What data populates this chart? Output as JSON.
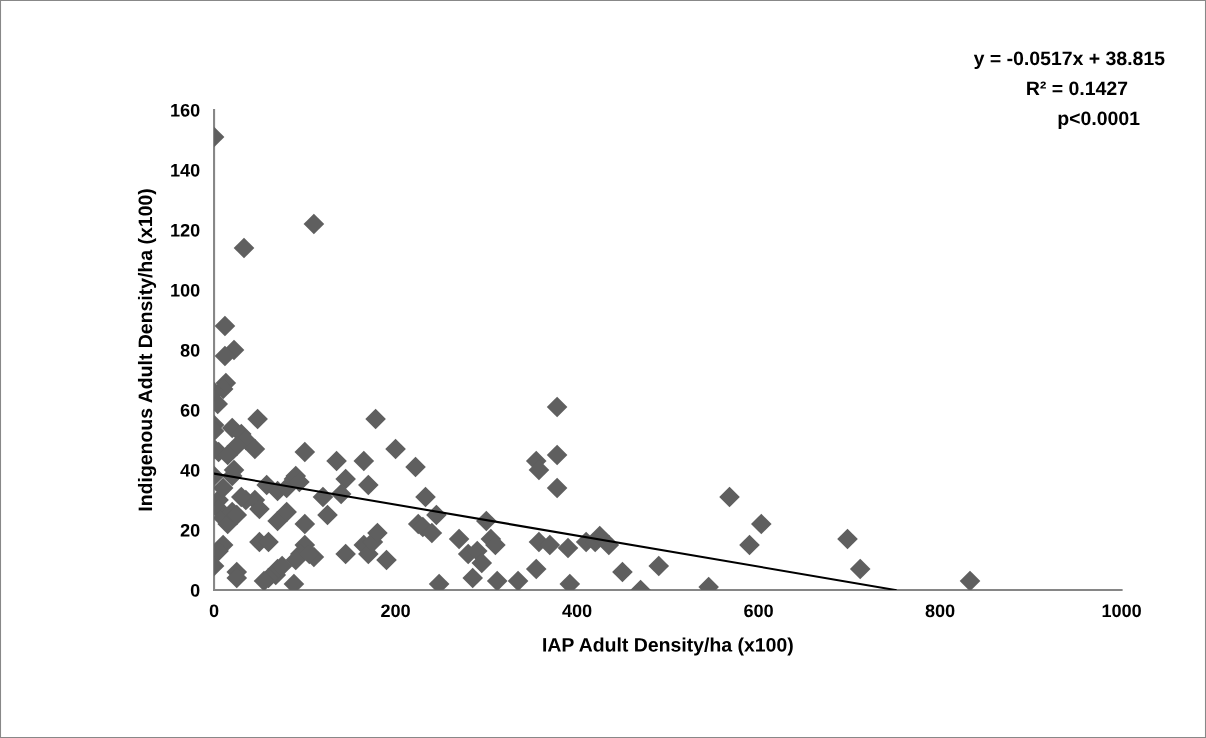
{
  "chart_data": {
    "type": "scatter",
    "xlabel": "IAP Adult Density/ha (x100)",
    "ylabel": "Indigenous Adult Density/ha (x100)",
    "annotations": [
      "y = -0.0517x + 38.815",
      "R² = 0.1427",
      "p<0.0001"
    ],
    "xlim": [
      0,
      1000
    ],
    "xticks": [
      0,
      200,
      400,
      600,
      800,
      1000
    ],
    "ylim": [
      0,
      160
    ],
    "yticks": [
      0,
      20,
      40,
      60,
      80,
      100,
      120,
      140,
      160
    ],
    "grid": false,
    "legend": false,
    "marker": "diamond",
    "series": [
      {
        "color": "#5f5f5f",
        "x": [
          0,
          110,
          33,
          12,
          22,
          12,
          13,
          10,
          0,
          4,
          0,
          0,
          48,
          178,
          378,
          20,
          30,
          35,
          45,
          25,
          0,
          5,
          15,
          100,
          200,
          135,
          165,
          355,
          358,
          378,
          222,
          0,
          5,
          10,
          20,
          22,
          35,
          45,
          50,
          58,
          70,
          80,
          88,
          90,
          94,
          145,
          5,
          10,
          15,
          20,
          25,
          30,
          50,
          60,
          70,
          80,
          100,
          120,
          125,
          140,
          170,
          165,
          170,
          175,
          180,
          190,
          225,
          230,
          233,
          240,
          245,
          270,
          280,
          285,
          290,
          295,
          300,
          305,
          310,
          312,
          335,
          355,
          358,
          370,
          378,
          390,
          392,
          410,
          420,
          425,
          435,
          450,
          470,
          490,
          545,
          568,
          590,
          603,
          698,
          712,
          833,
          248,
          145,
          110,
          100,
          95,
          90,
          88,
          68,
          70,
          60,
          55,
          25,
          25,
          10,
          0,
          5,
          105,
          75
        ],
        "values": [
          151,
          122,
          114,
          88,
          80,
          78,
          69,
          67,
          66,
          62,
          55,
          53,
          57,
          57,
          61,
          54,
          52,
          50,
          47,
          48,
          47,
          46,
          45,
          46,
          47,
          43,
          43,
          43,
          40,
          45,
          41,
          38,
          30,
          34,
          38,
          40,
          30,
          30,
          27,
          35,
          33,
          34,
          37,
          38,
          36,
          37,
          27,
          24,
          22,
          26,
          25,
          31,
          16,
          16,
          23,
          26,
          22,
          31,
          25,
          32,
          35,
          15,
          12,
          16,
          19,
          10,
          22,
          21,
          31,
          19,
          25,
          17,
          12,
          4,
          13,
          9,
          23,
          17,
          15,
          3,
          3,
          7,
          16,
          15,
          34,
          14,
          2,
          16,
          16,
          18,
          15,
          6,
          0,
          8,
          1,
          31,
          15,
          22,
          17,
          7,
          3,
          2,
          12,
          11,
          15,
          12,
          10,
          2,
          5,
          7,
          4,
          3,
          6,
          4,
          15,
          8,
          13,
          12,
          8
        ]
      },
      {
        "type": "line",
        "color": "#000000",
        "marker": "none",
        "line_style": "solid",
        "x": [
          0,
          751
        ],
        "values": [
          38.8,
          0
        ]
      }
    ]
  }
}
